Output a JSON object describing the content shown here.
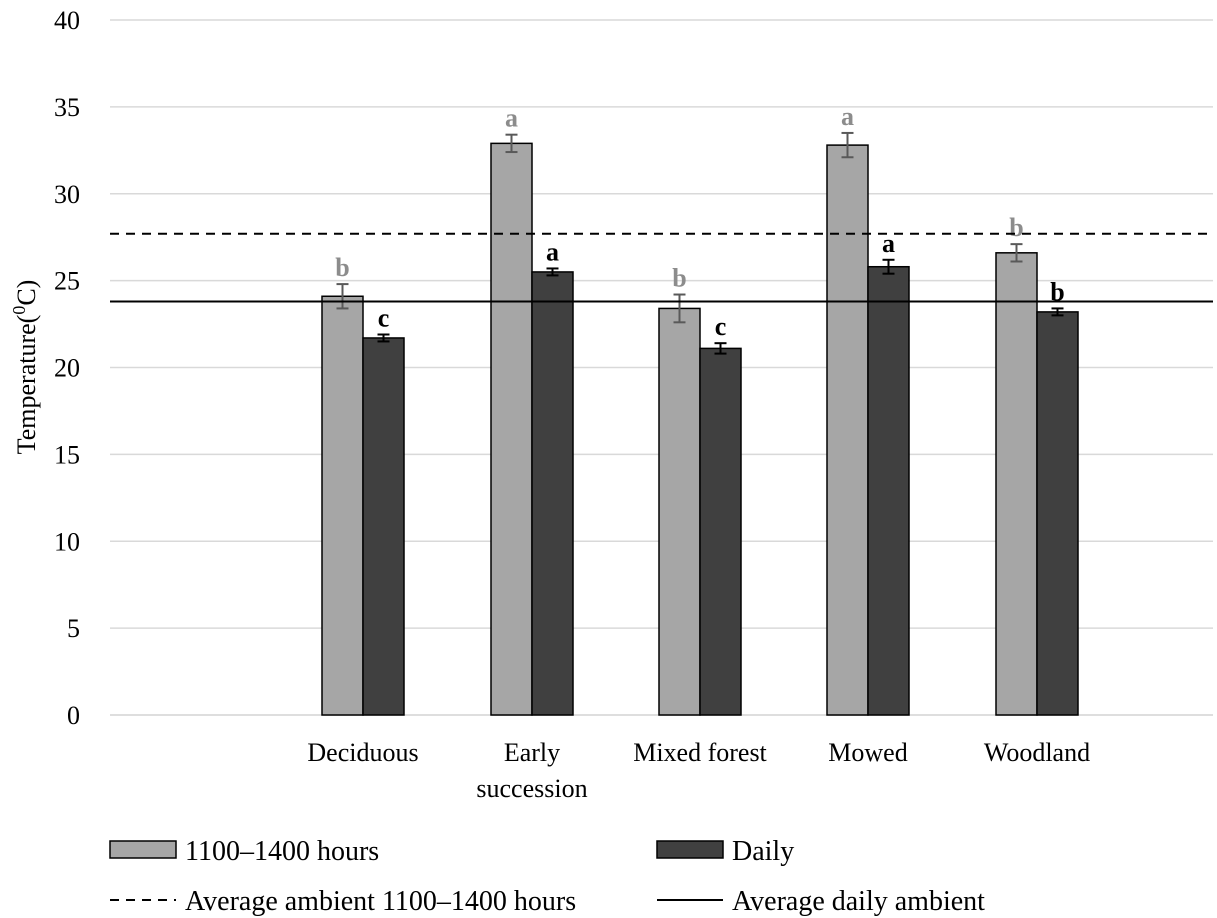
{
  "chart_data": {
    "type": "bar",
    "ylabel": "Temperature",
    "ylabel_unit_prefix": "(",
    "ylabel_unit_sup": "0",
    "ylabel_unit_suffix": "C)",
    "ylim": [
      0,
      40
    ],
    "yticks": [
      0,
      5,
      10,
      15,
      20,
      25,
      30,
      35,
      40
    ],
    "grid": true,
    "categories": [
      [
        "Deciduous"
      ],
      [
        "Early",
        "succession"
      ],
      [
        "Mixed forest"
      ],
      [
        "Mowed"
      ],
      [
        "Woodland"
      ]
    ],
    "series": [
      {
        "name": "1100–1400  hours",
        "color": "#a6a6a6",
        "values": [
          24.1,
          32.9,
          23.4,
          32.8,
          26.6
        ],
        "errors": [
          0.7,
          0.5,
          0.8,
          0.7,
          0.5
        ],
        "letters": [
          "b",
          "a",
          "b",
          "a",
          "b"
        ],
        "letter_color": "#8c8c8c"
      },
      {
        "name": "Daily",
        "color": "#404040",
        "values": [
          21.7,
          25.5,
          21.1,
          25.8,
          23.2
        ],
        "errors": [
          0.2,
          0.2,
          0.3,
          0.4,
          0.2
        ],
        "letters": [
          "c",
          "a",
          "c",
          "a",
          "b"
        ],
        "letter_color": "#000000"
      }
    ],
    "reference_lines": [
      {
        "name": "Average ambient 1100–1400  hours",
        "value": 27.7,
        "style": "dashed",
        "color": "#000000"
      },
      {
        "name": "Average daily ambient",
        "value": 23.8,
        "style": "solid",
        "color": "#000000"
      }
    ],
    "legend_position": "bottom"
  }
}
